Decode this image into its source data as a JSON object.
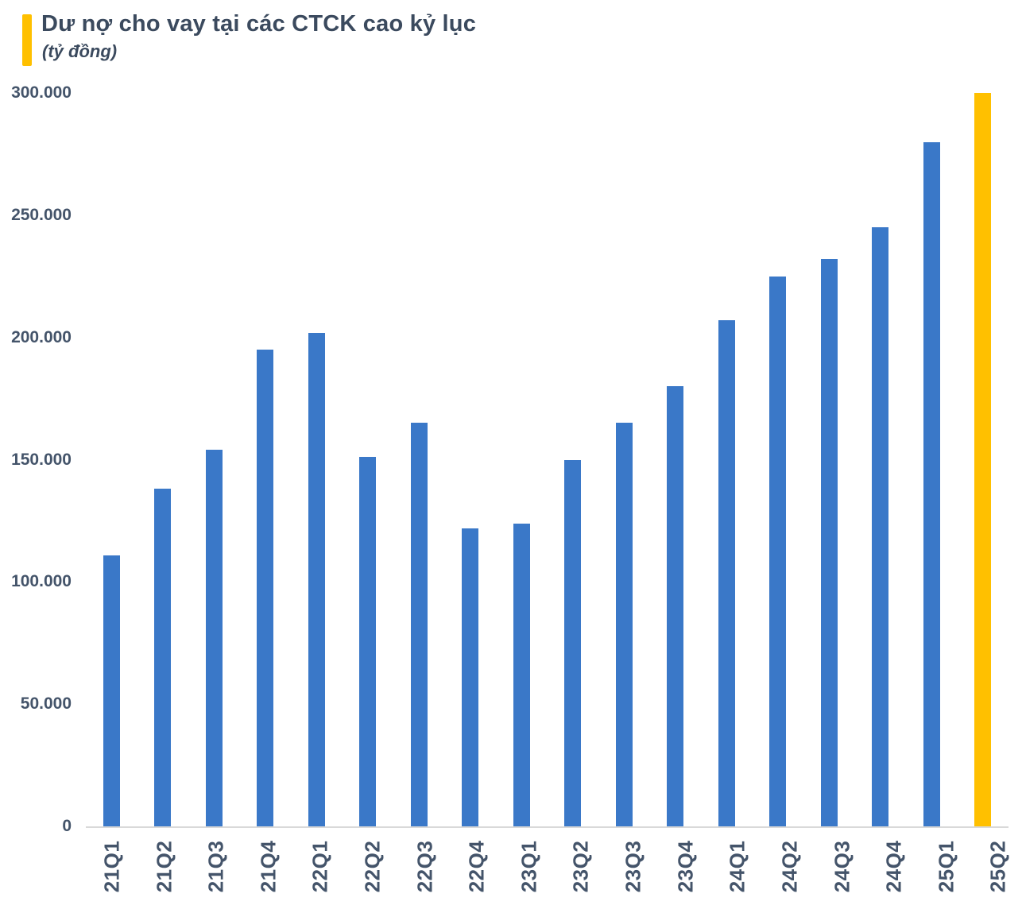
{
  "header": {
    "title": "Dư nợ cho vay tại các CTCK cao kỷ lục",
    "subtitle": "(tỷ đồng)"
  },
  "chart_data": {
    "type": "bar",
    "title": "Dư nợ cho vay tại các CTCK cao kỷ lục",
    "unit_label": "(tỷ đồng)",
    "categories": [
      "21Q1",
      "21Q2",
      "21Q3",
      "21Q4",
      "22Q1",
      "22Q2",
      "22Q3",
      "22Q4",
      "23Q1",
      "23Q2",
      "23Q3",
      "23Q4",
      "24Q1",
      "24Q2",
      "24Q3",
      "24Q4",
      "25Q1",
      "25Q2"
    ],
    "values": [
      111000,
      138000,
      154000,
      195000,
      202000,
      151000,
      165000,
      122000,
      124000,
      150000,
      165000,
      180000,
      207000,
      225000,
      232000,
      245000,
      280000,
      300000
    ],
    "highlight_index": 17,
    "highlight_category": "25Q2",
    "ylim": [
      0,
      300000
    ],
    "ytick_step": 50000,
    "yticks": [
      {
        "value": 0,
        "label": "0"
      },
      {
        "value": 50000,
        "label": "50.000"
      },
      {
        "value": 100000,
        "label": "100.000"
      },
      {
        "value": 150000,
        "label": "150.000"
      },
      {
        "value": 200000,
        "label": "200.000"
      },
      {
        "value": 250000,
        "label": "250.000"
      },
      {
        "value": 300000,
        "label": "300.000"
      }
    ],
    "grid": false,
    "legend": "none",
    "xlabel_rotation": -90
  },
  "colors": {
    "background": "#ffffff",
    "accent": "#FFC000",
    "bar": "#3A78C8",
    "highlight_bar": "#FFC000",
    "title_text": "#3B4A5E",
    "tick_text": "#44546A",
    "axis_line": "#D9D9D9"
  }
}
